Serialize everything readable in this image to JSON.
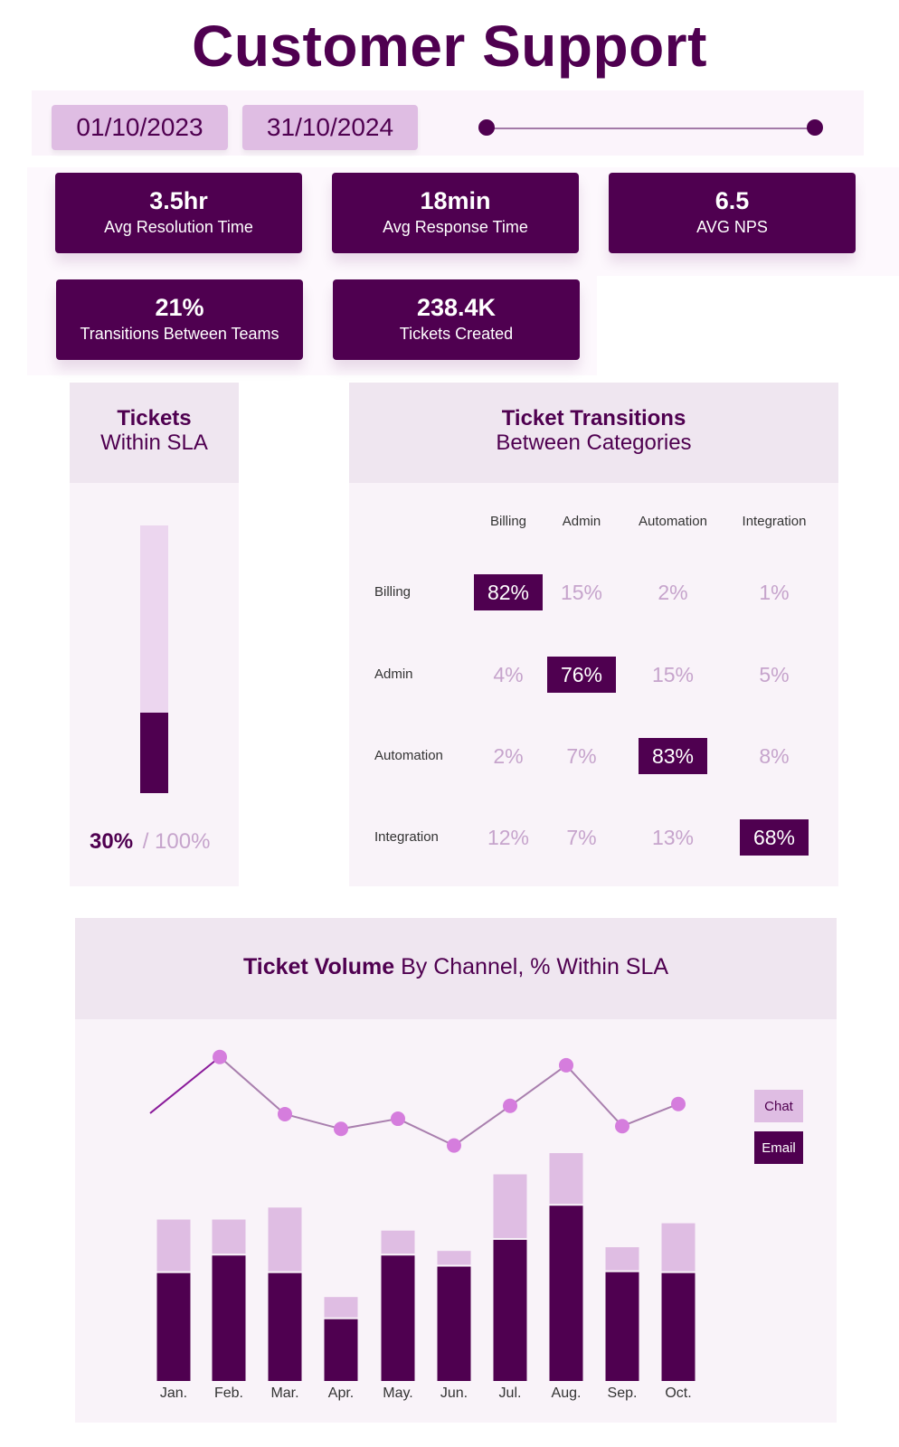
{
  "header": {
    "title": "Customer Support"
  },
  "date_filter": {
    "start": "01/10/2023",
    "end": "31/10/2024"
  },
  "kpis": [
    {
      "value": "3.5hr",
      "label": "Avg Resolution Time"
    },
    {
      "value": "18min",
      "label": "Avg Response Time"
    },
    {
      "value": "6.5",
      "label": "AVG NPS"
    },
    {
      "value": "21%",
      "label": "Transitions Between Teams"
    },
    {
      "value": "238.4K",
      "label": "Tickets Created"
    }
  ],
  "sla": {
    "title_bold": "Tickets",
    "title_rest": "Within SLA",
    "value": "30%",
    "total": "/ 100%",
    "fraction": 0.3
  },
  "transitions": {
    "title_bold": "Ticket Transitions",
    "title_rest": "Between Categories",
    "columns": [
      "Billing",
      "Admin",
      "Automation",
      "Integration"
    ],
    "rows": [
      {
        "label": "Billing",
        "cells": [
          "82%",
          "15%",
          "2%",
          "1%"
        ]
      },
      {
        "label": "Admin",
        "cells": [
          "4%",
          "76%",
          "15%",
          "5%"
        ]
      },
      {
        "label": "Automation",
        "cells": [
          "2%",
          "7%",
          "83%",
          "8%"
        ]
      },
      {
        "label": "Integration",
        "cells": [
          "12%",
          "7%",
          "13%",
          "68%"
        ]
      }
    ]
  },
  "colors": {
    "dark": "#4f0050",
    "light": "#dfbde3",
    "line": "#a97fae",
    "dot": "#d57ddd"
  },
  "chart_data": {
    "type": "bar",
    "title_bold": "Ticket Volume",
    "title_rest": "By Channel, % Within SLA",
    "categories": [
      "Jan.",
      "Feb.",
      "Mar.",
      "Apr.",
      "May.",
      "Jun.",
      "Jul.",
      "Aug.",
      "Sep.",
      "Oct."
    ],
    "series": [
      {
        "name": "Email",
        "stack": true,
        "values": [
          117,
          136,
          117,
          67,
          136,
          124,
          153,
          190,
          118,
          117
        ]
      },
      {
        "name": "Chat",
        "stack": true,
        "values": [
          58,
          39,
          71,
          24,
          27,
          17,
          71,
          57,
          27,
          54
        ]
      },
      {
        "name": "% Within SLA",
        "type": "line",
        "values": [
          53,
          114,
          52,
          36,
          47,
          18,
          61,
          105,
          39,
          63
        ]
      }
    ],
    "legend": [
      "Chat",
      "Email"
    ],
    "legend_position": "right",
    "grid": false,
    "note": "relative units; no axis shown"
  }
}
